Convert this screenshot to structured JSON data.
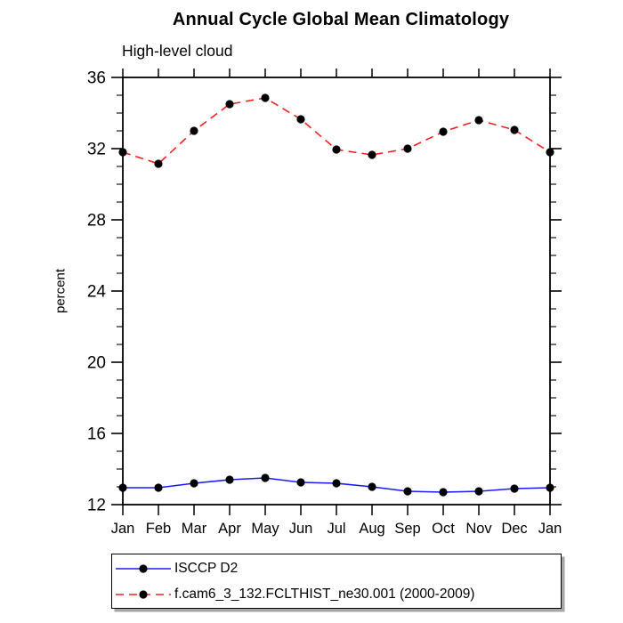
{
  "title": "Annual Cycle Global Mean Climatology",
  "subtitle": "High-level cloud",
  "chart_data": {
    "type": "line",
    "categories": [
      "Jan",
      "Feb",
      "Mar",
      "Apr",
      "May",
      "Jun",
      "Jul",
      "Aug",
      "Sep",
      "Oct",
      "Nov",
      "Dec",
      "Jan"
    ],
    "title": "Annual Cycle Global Mean Climatology",
    "subtitle": "High-level cloud",
    "xlabel": "",
    "ylabel": "percent",
    "ylim": [
      12,
      36
    ],
    "yticks": [
      12,
      16,
      20,
      24,
      28,
      32,
      36
    ],
    "minor_tick_step": 1,
    "grid": false,
    "legend_position": "bottom",
    "axis_color": "#000000",
    "series": [
      {
        "name": "ISCCP D2",
        "color": "#1a1aff",
        "style": "solid",
        "marker": "circle",
        "marker_color": "#000000",
        "values": [
          12.95,
          12.95,
          13.2,
          13.4,
          13.5,
          13.25,
          13.2,
          13.0,
          12.75,
          12.7,
          12.75,
          12.9,
          12.95
        ]
      },
      {
        "name": "f.cam6_3_132.FCLTHIST_ne30.001 (2000-2009)",
        "color": "#ee2222",
        "style": "dashed",
        "marker": "circle",
        "marker_color": "#000000",
        "values": [
          31.8,
          31.15,
          33.0,
          34.5,
          34.85,
          33.65,
          31.95,
          31.65,
          32.0,
          32.95,
          33.6,
          33.05,
          31.8
        ]
      }
    ]
  }
}
